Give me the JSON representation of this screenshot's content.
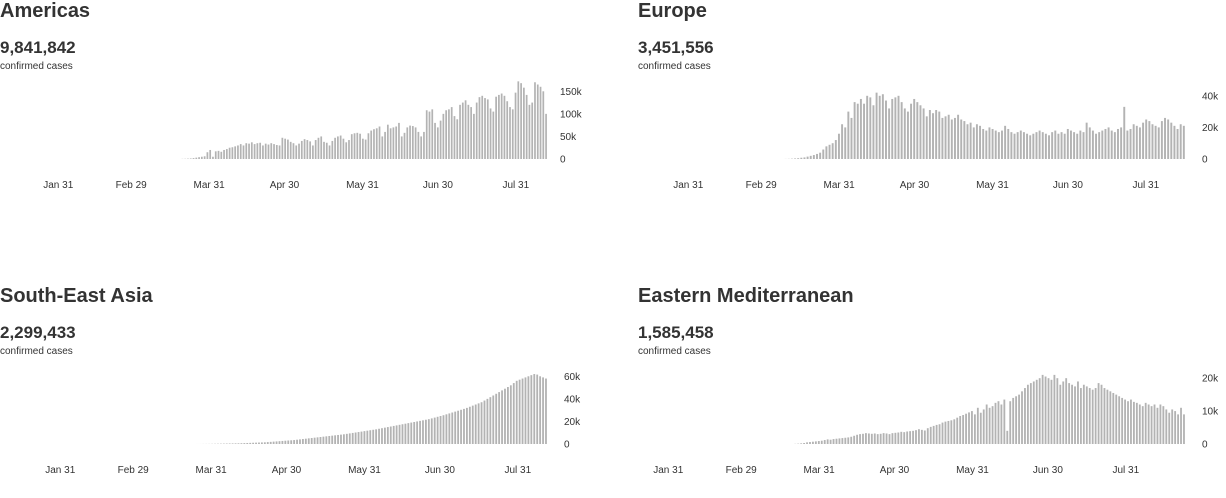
{
  "panels": [
    {
      "region": "Americas",
      "total": "9,841,842",
      "unit": "confirmed cases"
    },
    {
      "region": "Europe",
      "total": "3,451,556",
      "unit": "confirmed cases"
    },
    {
      "region": "South-East Asia",
      "total": "2,299,433",
      "unit": "confirmed cases"
    },
    {
      "region": "Eastern Mediterranean",
      "total": "1,585,458",
      "unit": "confirmed cases"
    }
  ],
  "chart_data": [
    {
      "type": "bar",
      "title": "Americas",
      "bar_color": "#b3b3b3",
      "x_ticks": [
        "Jan 31",
        "Feb 29",
        "Mar 31",
        "Apr 30",
        "May 31",
        "Jun 30",
        "Jul 31"
      ],
      "y_ticks": [
        "150k",
        "100k",
        "50k",
        "0"
      ],
      "ylim": [
        0,
        175000
      ],
      "grid": false,
      "x_start": "2020-01-13",
      "x_end": "2020-08-12",
      "values": [
        0,
        0,
        0,
        0,
        0,
        0,
        0,
        0,
        0,
        0,
        0,
        0,
        0,
        0,
        0,
        0,
        0,
        0,
        0,
        0,
        0,
        0,
        0,
        0,
        0,
        0,
        0,
        0,
        0,
        0,
        0,
        0,
        0,
        0,
        0,
        0,
        0,
        0,
        0,
        0,
        0,
        0,
        0,
        0,
        0,
        0,
        0,
        0,
        0,
        0,
        0,
        0,
        0,
        0,
        0,
        0,
        0,
        0,
        0,
        0,
        300,
        500,
        800,
        1200,
        2000,
        3000,
        4000,
        5000,
        6000,
        15000,
        20000,
        5000,
        17000,
        18000,
        16000,
        20000,
        22000,
        25000,
        26000,
        28000,
        30000,
        33000,
        30000,
        35000,
        34000,
        37000,
        33000,
        35000,
        36000,
        30000,
        34000,
        32000,
        35000,
        33000,
        31000,
        30000,
        47000,
        45000,
        43000,
        38000,
        35000,
        30000,
        34000,
        40000,
        44000,
        42000,
        39000,
        30000,
        42000,
        47000,
        50000,
        38000,
        36000,
        30000,
        40000,
        47000,
        50000,
        52000,
        45000,
        37000,
        42000,
        55000,
        57000,
        58000,
        56000,
        45000,
        43000,
        57000,
        63000,
        66000,
        68000,
        72000,
        50000,
        60000,
        76000,
        68000,
        70000,
        72000,
        80000,
        50000,
        58000,
        70000,
        74000,
        73000,
        70000,
        60000,
        50000,
        60000,
        108000,
        105000,
        110000,
        80000,
        70000,
        85000,
        100000,
        108000,
        110000,
        115000,
        95000,
        88000,
        120000,
        125000,
        130000,
        120000,
        115000,
        100000,
        125000,
        137000,
        140000,
        135000,
        132000,
        112000,
        105000,
        138000,
        142000,
        145000,
        140000,
        128000,
        115000,
        110000,
        147000,
        172000,
        168000,
        158000,
        142000,
        120000,
        125000,
        170000,
        165000,
        160000,
        150000,
        100000
      ]
    },
    {
      "type": "bar",
      "title": "Europe",
      "bar_color": "#b3b3b3",
      "x_ticks": [
        "Jan 31",
        "Feb 29",
        "Mar 31",
        "Apr 30",
        "May 31",
        "Jun 30",
        "Jul 31"
      ],
      "y_ticks": [
        "40k",
        "20k",
        "0"
      ],
      "ylim": [
        0,
        50000
      ],
      "grid": false,
      "x_start": "2020-01-13",
      "x_end": "2020-08-12",
      "values": [
        0,
        0,
        0,
        0,
        0,
        0,
        0,
        0,
        0,
        0,
        0,
        0,
        0,
        0,
        0,
        0,
        0,
        0,
        0,
        0,
        0,
        0,
        0,
        0,
        0,
        0,
        0,
        0,
        0,
        0,
        0,
        0,
        0,
        0,
        0,
        0,
        0,
        0,
        0,
        0,
        0,
        0,
        50,
        100,
        200,
        350,
        500,
        800,
        1000,
        1500,
        2000,
        2500,
        3200,
        4000,
        6000,
        8000,
        9000,
        10000,
        12000,
        16000,
        22000,
        20000,
        30000,
        26000,
        36000,
        35000,
        38000,
        35000,
        40000,
        39000,
        34000,
        42000,
        40000,
        41000,
        37000,
        32000,
        38000,
        39000,
        40000,
        36000,
        32000,
        30000,
        35000,
        38000,
        36000,
        34000,
        32000,
        27000,
        31000,
        29000,
        31000,
        30000,
        26000,
        27000,
        28000,
        25000,
        26000,
        28000,
        25000,
        24000,
        22000,
        23000,
        20000,
        22000,
        21000,
        19000,
        18000,
        20000,
        19000,
        18000,
        17000,
        18000,
        21000,
        19000,
        17000,
        16000,
        17000,
        18000,
        17000,
        16000,
        15000,
        16000,
        17000,
        18000,
        17000,
        16000,
        15000,
        17000,
        18000,
        16000,
        17000,
        16000,
        19000,
        18000,
        17000,
        16000,
        18000,
        17000,
        23000,
        20000,
        18000,
        16000,
        17000,
        18000,
        19000,
        20000,
        18000,
        17000,
        19000,
        20000,
        33000,
        18000,
        19000,
        22000,
        21000,
        20000,
        23000,
        25000,
        24000,
        22000,
        21000,
        20000,
        24000,
        26000,
        25000,
        23000,
        21000,
        19000,
        22000,
        21000
      ]
    },
    {
      "type": "bar",
      "title": "South-East Asia",
      "bar_color": "#b3b3b3",
      "x_ticks": [
        "Jan 31",
        "Feb 29",
        "Mar 31",
        "Apr 30",
        "May 31",
        "Jun 30",
        "Jul 31"
      ],
      "y_ticks": [
        "60k",
        "40k",
        "20k",
        "0"
      ],
      "ylim": [
        0,
        70000
      ],
      "grid": false,
      "x_start": "2020-01-13",
      "x_end": "2020-08-12",
      "values": [
        0,
        0,
        0,
        0,
        0,
        0,
        0,
        0,
        0,
        0,
        0,
        0,
        0,
        0,
        0,
        0,
        0,
        0,
        0,
        0,
        0,
        0,
        0,
        0,
        0,
        0,
        0,
        0,
        0,
        0,
        0,
        0,
        0,
        0,
        0,
        0,
        0,
        0,
        0,
        0,
        0,
        0,
        0,
        0,
        0,
        0,
        0,
        0,
        0,
        0,
        0,
        0,
        0,
        0,
        0,
        0,
        0,
        0,
        0,
        0,
        0,
        0,
        20,
        30,
        50,
        80,
        100,
        150,
        200,
        250,
        300,
        350,
        400,
        450,
        500,
        550,
        600,
        700,
        800,
        900,
        1000,
        1100,
        1200,
        1300,
        1400,
        1500,
        1700,
        1900,
        2100,
        2300,
        2500,
        2700,
        2900,
        3100,
        3300,
        3500,
        3800,
        4100,
        4400,
        4700,
        5000,
        5300,
        5600,
        5900,
        6200,
        6500,
        6800,
        7100,
        7400,
        7700,
        8000,
        8300,
        8600,
        9000,
        9400,
        9800,
        10200,
        10600,
        11000,
        11400,
        11800,
        12200,
        12600,
        13000,
        13500,
        14000,
        14500,
        15000,
        15500,
        16000,
        16500,
        17000,
        17500,
        18000,
        18500,
        19000,
        19500,
        20000,
        20500,
        21000,
        21500,
        22000,
        22700,
        23400,
        24100,
        24800,
        25500,
        26300,
        27100,
        27900,
        28700,
        29500,
        30300,
        31100,
        32000,
        33000,
        34000,
        35000,
        36000,
        37000,
        38500,
        40000,
        41500,
        43000,
        44500,
        46000,
        47500,
        49000,
        50500,
        52000,
        54000,
        56000,
        57000,
        58000,
        59000,
        60000,
        61000,
        62000,
        61500,
        60000,
        59000,
        58000
      ]
    },
    {
      "type": "bar",
      "title": "Eastern Mediterranean",
      "bar_color": "#b3b3b3",
      "x_ticks": [
        "Jan 31",
        "Feb 29",
        "Mar 31",
        "Apr 30",
        "May 31",
        "Jun 30",
        "Jul 31"
      ],
      "y_ticks": [
        "20k",
        "10k",
        "0"
      ],
      "ylim": [
        0,
        24000
      ],
      "grid": false,
      "x_start": "2020-01-13",
      "x_end": "2020-08-12",
      "values": [
        0,
        0,
        0,
        0,
        0,
        0,
        0,
        0,
        0,
        0,
        0,
        0,
        0,
        0,
        0,
        0,
        0,
        0,
        0,
        0,
        0,
        0,
        0,
        0,
        0,
        0,
        0,
        0,
        0,
        0,
        0,
        0,
        0,
        0,
        0,
        0,
        0,
        0,
        0,
        0,
        0,
        0,
        0,
        0,
        0,
        0,
        0,
        0,
        50,
        100,
        200,
        300,
        500,
        600,
        700,
        800,
        900,
        1000,
        1200,
        1400,
        1300,
        1500,
        1600,
        1700,
        1800,
        1900,
        2000,
        2200,
        2500,
        2800,
        3000,
        3100,
        3300,
        3200,
        3100,
        3200,
        3000,
        3100,
        3300,
        3200,
        3000,
        3300,
        3400,
        3500,
        3700,
        3600,
        3800,
        3900,
        4000,
        4200,
        4500,
        4300,
        4100,
        4800,
        5200,
        5500,
        5800,
        6000,
        6500,
        6800,
        7000,
        7200,
        7500,
        8000,
        8500,
        8800,
        9200,
        9600,
        10000,
        9000,
        11000,
        9500,
        10500,
        12000,
        11000,
        11500,
        12500,
        13000,
        12000,
        13500,
        4000,
        13000,
        14000,
        14500,
        15000,
        16000,
        17000,
        18000,
        18500,
        19000,
        19500,
        20000,
        21000,
        20500,
        20000,
        19500,
        21000,
        20000,
        18000,
        19000,
        20000,
        18500,
        18000,
        17500,
        19000,
        17000,
        18000,
        17500,
        17000,
        16500,
        17000,
        18500,
        18000,
        17000,
        16500,
        16000,
        15500,
        15000,
        14500,
        14000,
        13500,
        13000,
        13500,
        12800,
        12500,
        12000,
        11500,
        12500,
        12000,
        11500,
        12000,
        11000,
        12000,
        11500,
        10500,
        9500,
        10500,
        10000,
        9000,
        11000,
        9000
      ]
    }
  ]
}
